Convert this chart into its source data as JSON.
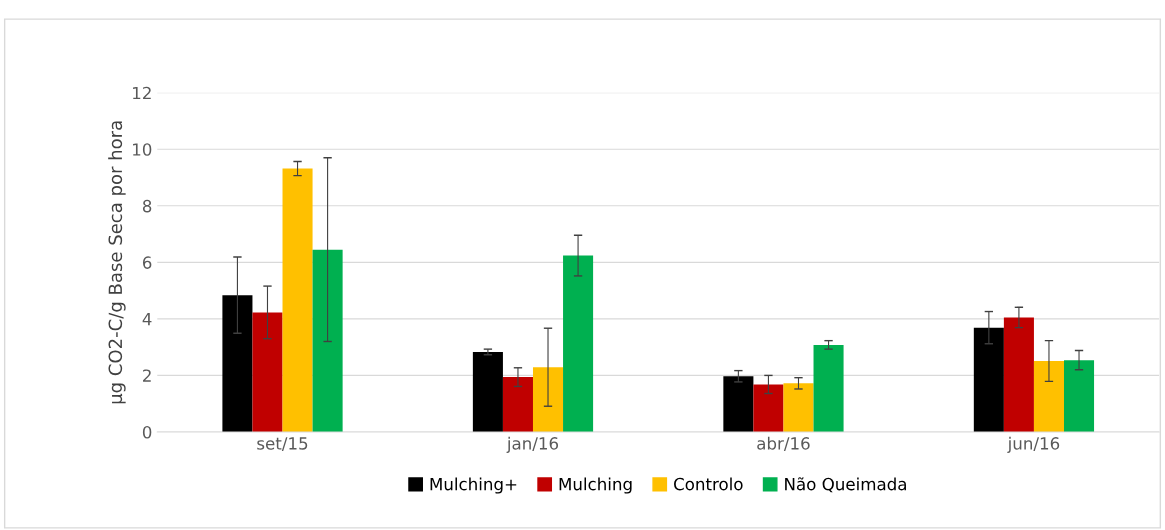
{
  "chart_data": {
    "type": "bar",
    "ylabel": "µg CO2-C/g Base Seca por hora",
    "categories": [
      "set/15",
      "jan/16",
      "abr/16",
      "jun/16"
    ],
    "series": [
      {
        "name": "Mulching+",
        "color": "#000000",
        "values": [
          4.84,
          2.83,
          1.97,
          3.69
        ],
        "errors": [
          1.35,
          0.1,
          0.2,
          0.57
        ]
      },
      {
        "name": "Mulching",
        "color": "#c00000",
        "values": [
          4.23,
          1.94,
          1.68,
          4.05
        ],
        "errors": [
          0.93,
          0.33,
          0.32,
          0.36
        ]
      },
      {
        "name": "Controlo",
        "color": "#ffc000",
        "values": [
          9.32,
          2.29,
          1.72,
          2.51
        ],
        "errors": [
          0.25,
          1.38,
          0.2,
          0.72
        ]
      },
      {
        "name": "Não Queimada",
        "color": "#00b050",
        "values": [
          6.45,
          6.24,
          3.08,
          2.54
        ],
        "errors": [
          3.25,
          0.72,
          0.15,
          0.34
        ]
      }
    ],
    "ylim": [
      0,
      12
    ],
    "yticks": [
      0,
      2,
      4,
      6,
      8,
      10,
      12
    ],
    "grid": "y",
    "legend": "bottom"
  }
}
